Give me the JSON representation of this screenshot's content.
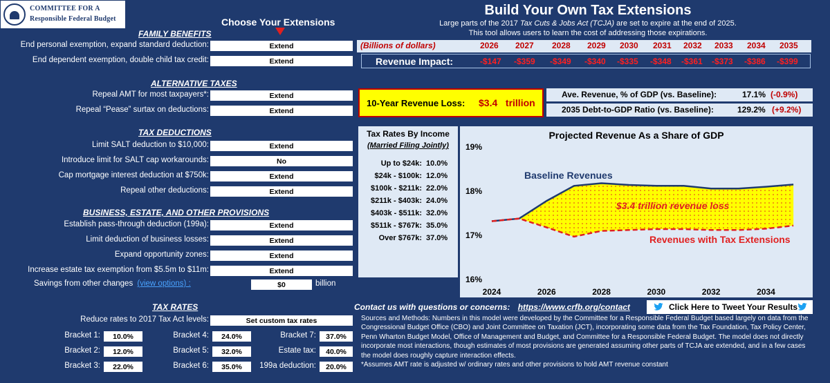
{
  "logo": {
    "line1": "Committee for a",
    "line2": "Responsible Federal Budget"
  },
  "header": {
    "choose": "Choose Your Extensions",
    "title": "Build Your Own Tax Extensions",
    "subtitle_pre": "Large parts of the 2017 ",
    "subtitle_italic": "Tax Cuts & Jobs Act (TCJA)",
    "subtitle_post": " are set to expire at the end of 2025.",
    "subtitle2": "This tool allows users to learn the cost of addressing those expirations."
  },
  "family": {
    "heading": "FAMILY BENEFITS",
    "rows": [
      {
        "label": "End personal exemption, expand standard deduction:",
        "value": "Extend"
      },
      {
        "label": "End dependent exemption, double child tax credit:",
        "value": "Extend"
      }
    ]
  },
  "alternative": {
    "heading": "ALTERNATIVE TAXES",
    "rows": [
      {
        "label": "Repeal AMT for most taxpayers*:",
        "value": "Extend"
      },
      {
        "label": "Repeal “Pease” surtax on deductions:",
        "value": "Extend"
      }
    ]
  },
  "deductions": {
    "heading": "TAX DEDUCTIONS",
    "rows": [
      {
        "label": "Limit SALT deduction to $10,000:",
        "value": "Extend"
      },
      {
        "label": "Introduce limit for SALT cap workarounds:",
        "value": "No"
      },
      {
        "label": "Cap mortgage interest deduction at $750k:",
        "value": "Extend"
      },
      {
        "label": "Repeal other deductions:",
        "value": "Extend"
      }
    ]
  },
  "business": {
    "heading": "BUSINESS, ESTATE, AND OTHER PROVISIONS",
    "rows": [
      {
        "label": "Establish pass-through deduction (199a):",
        "value": "Extend"
      },
      {
        "label": "Limit deduction of business losses:",
        "value": "Extend"
      },
      {
        "label": "Expand opportunity zones:",
        "value": "Extend"
      },
      {
        "label": "Increase estate tax exemption from $5.5m to $11m:",
        "value": "Extend"
      }
    ],
    "savings_label": "Savings from other changes",
    "savings_link": "(view options) :",
    "savings_value": "$0",
    "savings_unit": "billion"
  },
  "rates": {
    "heading": "TAX RATES",
    "reduce_label": "Reduce rates to 2017 Tax Act levels:",
    "reduce_value": "Set custom tax rates",
    "brackets": [
      {
        "label": "Bracket 1:",
        "value": "10.0%"
      },
      {
        "label": "Bracket 2:",
        "value": "12.0%"
      },
      {
        "label": "Bracket 3:",
        "value": "22.0%"
      },
      {
        "label": "Bracket 4:",
        "value": "24.0%"
      },
      {
        "label": "Bracket 5:",
        "value": "32.0%"
      },
      {
        "label": "Bracket 6:",
        "value": "35.0%"
      },
      {
        "label": "Bracket 7:",
        "value": "37.0%"
      },
      {
        "label": "Estate tax:",
        "value": "40.0%"
      },
      {
        "label": "199a deduction:",
        "value": "20.0%"
      }
    ]
  },
  "revenue": {
    "units": "(Billions of dollars)",
    "years": [
      "2026",
      "2027",
      "2028",
      "2029",
      "2030",
      "2031",
      "2032",
      "2033",
      "2034",
      "2035"
    ],
    "label": "Revenue Impact:",
    "values": [
      "-$147",
      "-$359",
      "-$349",
      "-$340",
      "-$335",
      "-$348",
      "-$361",
      "-$373",
      "-$386",
      "-$399"
    ]
  },
  "loss": {
    "label": "10-Year Revenue Loss:",
    "value": "$3.4   trillion"
  },
  "gdp": {
    "ave_label": "Ave. Revenue, % of GDP (vs. Baseline):",
    "ave_value": "17.1%",
    "ave_change": "(-0.9%)",
    "debt_label": "2035 Debt-to-GDP Ratio (vs. Baseline):",
    "debt_value": "129.2%",
    "debt_change": "(+9.2%)"
  },
  "tax_table": {
    "title": "Tax Rates By Income",
    "subtitle": "(Married Filing Jointly)",
    "rows": [
      {
        "range": "Up to $24k:",
        "rate": "10.0%"
      },
      {
        "range": "$24k - $100k:",
        "rate": "12.0%"
      },
      {
        "range": "$100k - $211k:",
        "rate": "22.0%"
      },
      {
        "range": "$211k - $403k:",
        "rate": "24.0%"
      },
      {
        "range": "$403k - $511k:",
        "rate": "32.0%"
      },
      {
        "range": "$511k - $767k:",
        "rate": "35.0%"
      },
      {
        "range": "Over $767k:",
        "rate": "37.0%"
      }
    ]
  },
  "chart_data": {
    "type": "line",
    "title": "Projected Revenue As a Share of GDP",
    "xlim": [
      2024,
      2035.2
    ],
    "ylim": [
      16,
      19
    ],
    "x_ticks": [
      2024,
      2026,
      2028,
      2030,
      2032,
      2034
    ],
    "x_tick_labels": [
      "2024",
      "2026",
      "2028",
      "2030",
      "2032",
      "2034"
    ],
    "y_ticks": [
      16,
      17,
      18,
      19
    ],
    "y_tick_labels": [
      "16%",
      "17%",
      "18%",
      "19%"
    ],
    "series": [
      {
        "name": "Baseline Revenues",
        "color": "#1f3a6e",
        "x": [
          2024,
          2025,
          2026,
          2027,
          2028,
          2029,
          2030,
          2031,
          2032,
          2033,
          2034,
          2035
        ],
        "y": [
          17.32,
          17.38,
          17.78,
          18.12,
          18.18,
          18.14,
          18.12,
          18.12,
          18.06,
          18.06,
          18.1,
          18.15
        ]
      },
      {
        "name": "Revenues with Tax Extensions",
        "color": "#e02020",
        "x": [
          2024,
          2025,
          2026,
          2027,
          2028,
          2029,
          2030,
          2031,
          2032,
          2033,
          2034,
          2035
        ],
        "y": [
          17.32,
          17.38,
          17.18,
          16.97,
          17.1,
          17.12,
          17.14,
          17.14,
          17.12,
          17.12,
          17.15,
          17.22
        ]
      }
    ],
    "fill_label": "$3.4 trillion revenue loss",
    "fill_color": "#ffff00",
    "grid": false,
    "legend": "inline labels"
  },
  "contact": {
    "label": "Contact us with questions or concerns:",
    "link": "https://www.crfb.org/contact"
  },
  "tweet": {
    "label": "Click Here to Tweet Your Results"
  },
  "sources": {
    "text": "Sources and Methods: Numbers in this model were developed by the Committee for a Responsible Federal Budget based largely on data from the Congressional Budget Office (CBO) and Joint Committee on Taxation (JCT), incorporating some data from the Tax Foundation, Tax Policy Center, Penn Wharton Budget Model, Office of Management and Budget, and Committee for a Responsible Federal Budget. The model does not directly incorporate most interactions, though estimates of most provisions are generated assuming other parts of TCJA are extended, and in a few cases the model does roughly capture interaction effects.",
    "note": "*Assumes AMT rate is adjusted w/ ordinary rates and other provisions to hold AMT revenue constant"
  }
}
